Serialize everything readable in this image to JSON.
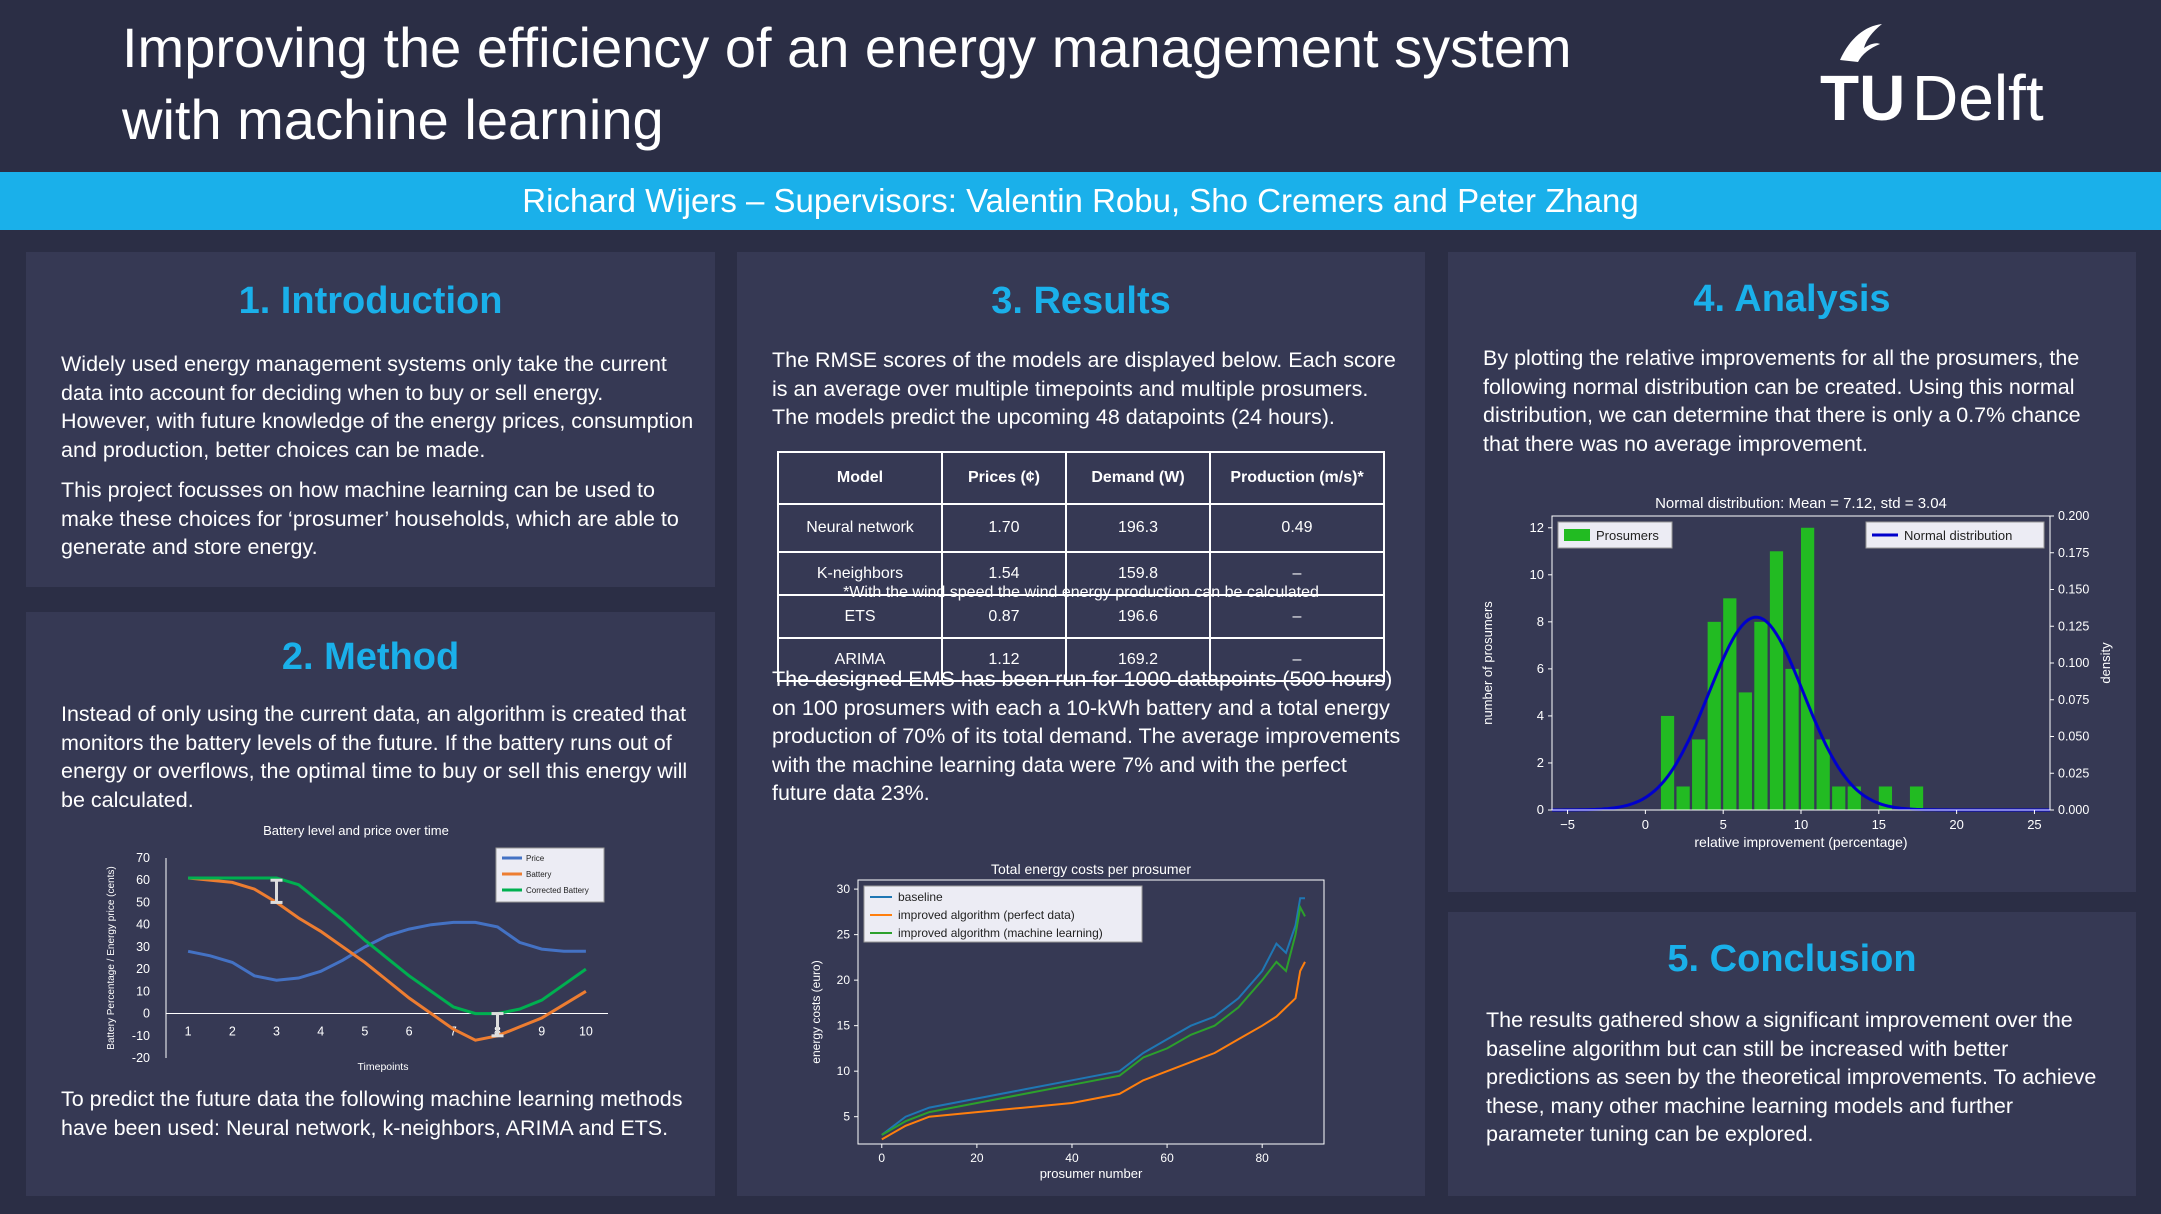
{
  "header": {
    "title_line1": "Improving the efficiency of an energy management system",
    "title_line2": "with machine learning",
    "logo_text": "TUDelft",
    "authors": "Richard Wijers – Supervisors: Valentin Robu, Sho Cremers and Peter Zhang"
  },
  "colors": {
    "accent": "#1ab0ea",
    "background": "#2b2e45",
    "panel": "#363954"
  },
  "introduction": {
    "heading": "1. Introduction",
    "p1": "Widely used energy management systems only take the current data into account for deciding when to buy or sell energy. However, with future knowledge of the energy prices, consumption and production, better choices can be made.",
    "p2": "This project focusses on how machine learning can be used to make these choices for ‘prosumer’ households, which are able to generate and store energy."
  },
  "method": {
    "heading": "2. Method",
    "p1": "Instead of only using the current data, an algorithm is created that monitors the battery levels of the future. If the battery runs out of energy or overflows, the optimal time to buy or sell this energy will be calculated.",
    "p2": "To predict the future data the following machine learning methods have been used: Neural network, k-neighbors, ARIMA and ETS."
  },
  "results": {
    "heading": "3. Results",
    "p1": "The RMSE scores of the models are displayed below. Each score is an average over multiple timepoints and multiple prosumers. The models predict the upcoming 48 datapoints (24 hours).",
    "table": {
      "headers": [
        "Model",
        "Prices (¢)",
        "Demand (W)",
        "Production (m/s)*"
      ],
      "rows": [
        [
          "Neural network",
          "1.70",
          "196.3",
          "0.49"
        ],
        [
          "K-neighbors",
          "1.54",
          "159.8",
          "–"
        ],
        [
          "ETS",
          "0.87",
          "196.6",
          "–"
        ],
        [
          "ARIMA",
          "1.12",
          "169.2",
          "–"
        ]
      ]
    },
    "footnote": "*With the wind speed the wind energy production can be calculated",
    "p2": "The designed EMS has been run for 1000 datapoints (500 hours) on 100 prosumers with each a 10-kWh battery and a total energy production of 70% of its total demand. The average improvements with the machine learning data were 7%  and with the perfect future data 23%."
  },
  "analysis": {
    "heading": "4. Analysis",
    "p1": "By plotting the relative improvements for all the prosumers, the following normal distribution can be created. Using this normal distribution, we can determine that there is only a 0.7% chance that there was no average improvement."
  },
  "conclusion": {
    "heading": "5. Conclusion",
    "p1": "The results gathered show a significant improvement over the baseline algorithm but can still be increased with better predictions as seen by the theoretical improvements. To achieve these, many other machine learning models and further parameter tuning can be explored."
  },
  "chart_data": [
    {
      "id": "battery",
      "type": "line",
      "title": "Battery level and price over time",
      "xlabel": "Timepoints",
      "ylabel": "Battery Percentage / Energy price (cents)",
      "xlim": [
        0.5,
        10.5
      ],
      "ylim": [
        -20,
        70
      ],
      "xticks": [
        1,
        2,
        3,
        4,
        5,
        6,
        7,
        8,
        9,
        10
      ],
      "yticks": [
        -20,
        -10,
        0,
        10,
        20,
        30,
        40,
        50,
        60,
        70
      ],
      "legend_position": "top-right",
      "series": [
        {
          "name": "Price",
          "color": "#4472c4",
          "x": [
            1,
            1.5,
            2,
            2.5,
            3,
            3.5,
            4,
            4.5,
            5,
            5.5,
            6,
            6.5,
            7,
            7.5,
            8,
            8.5,
            9,
            9.5,
            10
          ],
          "y": [
            28,
            26,
            23,
            17,
            15,
            16,
            19,
            24,
            30,
            35,
            38,
            40,
            41,
            41,
            39,
            32,
            29,
            28,
            28
          ]
        },
        {
          "name": "Battery",
          "color": "#ed7d31",
          "x": [
            1,
            2,
            2.5,
            3,
            3.5,
            4,
            5,
            6,
            7,
            7.5,
            8,
            8.5,
            9,
            9.5,
            10
          ],
          "y": [
            61,
            59,
            56,
            50,
            43,
            37,
            23,
            7,
            -7,
            -12,
            -10,
            -6,
            -2,
            4,
            10
          ]
        },
        {
          "name": "Corrected Battery",
          "color": "#00b050",
          "x": [
            1,
            2,
            3,
            3.5,
            4,
            4.5,
            5,
            6,
            7,
            7.5,
            8,
            8.5,
            9,
            9.5,
            10
          ],
          "y": [
            61,
            61,
            61,
            58,
            50,
            42,
            33,
            17,
            3,
            0,
            0,
            2,
            6,
            13,
            20
          ]
        }
      ],
      "markers": [
        {
          "x": 3,
          "y_low": 50,
          "y_high": 60
        },
        {
          "x": 8,
          "y_low": -10,
          "y_high": 0
        }
      ]
    },
    {
      "id": "costs",
      "type": "line",
      "title": "Total energy costs per prosumer",
      "xlabel": "prosumer number",
      "ylabel": "energy costs (euro)",
      "xlim": [
        -5,
        93
      ],
      "ylim": [
        2,
        31
      ],
      "xticks": [
        0,
        20,
        40,
        60,
        80
      ],
      "yticks": [
        5,
        10,
        15,
        20,
        25,
        30
      ],
      "legend_position": "top-left",
      "series": [
        {
          "name": "baseline",
          "color": "#1f77b4",
          "x": [
            0,
            5,
            10,
            20,
            30,
            40,
            50,
            55,
            60,
            65,
            70,
            75,
            80,
            83,
            85,
            87,
            88,
            89
          ],
          "y": [
            3,
            5,
            6,
            7,
            8,
            9,
            10,
            12,
            13.5,
            15,
            16,
            18,
            21,
            24,
            23,
            26,
            29,
            29
          ]
        },
        {
          "name": "improved algorithm (perfect data)",
          "color": "#ff7f0e",
          "x": [
            0,
            5,
            10,
            20,
            30,
            40,
            50,
            55,
            60,
            65,
            70,
            75,
            80,
            83,
            85,
            87,
            88,
            89
          ],
          "y": [
            2.5,
            4,
            5,
            5.5,
            6,
            6.5,
            7.5,
            9,
            10,
            11,
            12,
            13.5,
            15,
            16,
            17,
            18,
            21,
            22
          ]
        },
        {
          "name": "improved algorithm (machine learning)",
          "color": "#2ca02c",
          "x": [
            0,
            5,
            10,
            20,
            30,
            40,
            50,
            55,
            60,
            65,
            70,
            75,
            80,
            83,
            85,
            87,
            88,
            89
          ],
          "y": [
            3,
            4.5,
            5.5,
            6.5,
            7.5,
            8.5,
            9.5,
            11.5,
            12.5,
            14,
            15,
            17,
            20,
            22,
            21,
            25,
            28,
            27
          ]
        }
      ]
    },
    {
      "id": "normal",
      "type": "bar",
      "title": "Normal distribution: Mean = 7.12,  std = 3.04",
      "xlabel": "relative improvement (percentage)",
      "ylabel": "number of prosumers",
      "y2label": "density",
      "xlim": [
        -6,
        26
      ],
      "ylim": [
        0,
        12.5
      ],
      "y2lim": [
        0,
        0.2
      ],
      "xticks": [
        -5,
        0,
        5,
        10,
        15,
        20,
        25
      ],
      "yticks": [
        0,
        2,
        4,
        6,
        8,
        10,
        12
      ],
      "y2ticks": [
        "0.000",
        "0.025",
        "0.050",
        "0.075",
        "0.100",
        "0.125",
        "0.150",
        "0.175",
        "0.200"
      ],
      "legend": [
        "Prosumers",
        "Normal distribution"
      ],
      "bin_width": 0.85,
      "bins": [
        [
          1,
          4
        ],
        [
          2,
          1
        ],
        [
          3,
          3
        ],
        [
          4,
          8
        ],
        [
          5,
          9
        ],
        [
          6,
          5
        ],
        [
          7,
          8
        ],
        [
          8,
          11
        ],
        [
          9,
          6
        ],
        [
          10,
          12
        ],
        [
          11,
          3
        ],
        [
          12,
          1
        ],
        [
          13,
          1
        ],
        [
          15,
          1
        ],
        [
          17,
          1
        ]
      ],
      "normal": {
        "mean": 7.12,
        "std": 3.04,
        "color": "#0000cc"
      },
      "bar_color": "#22bb22"
    }
  ]
}
